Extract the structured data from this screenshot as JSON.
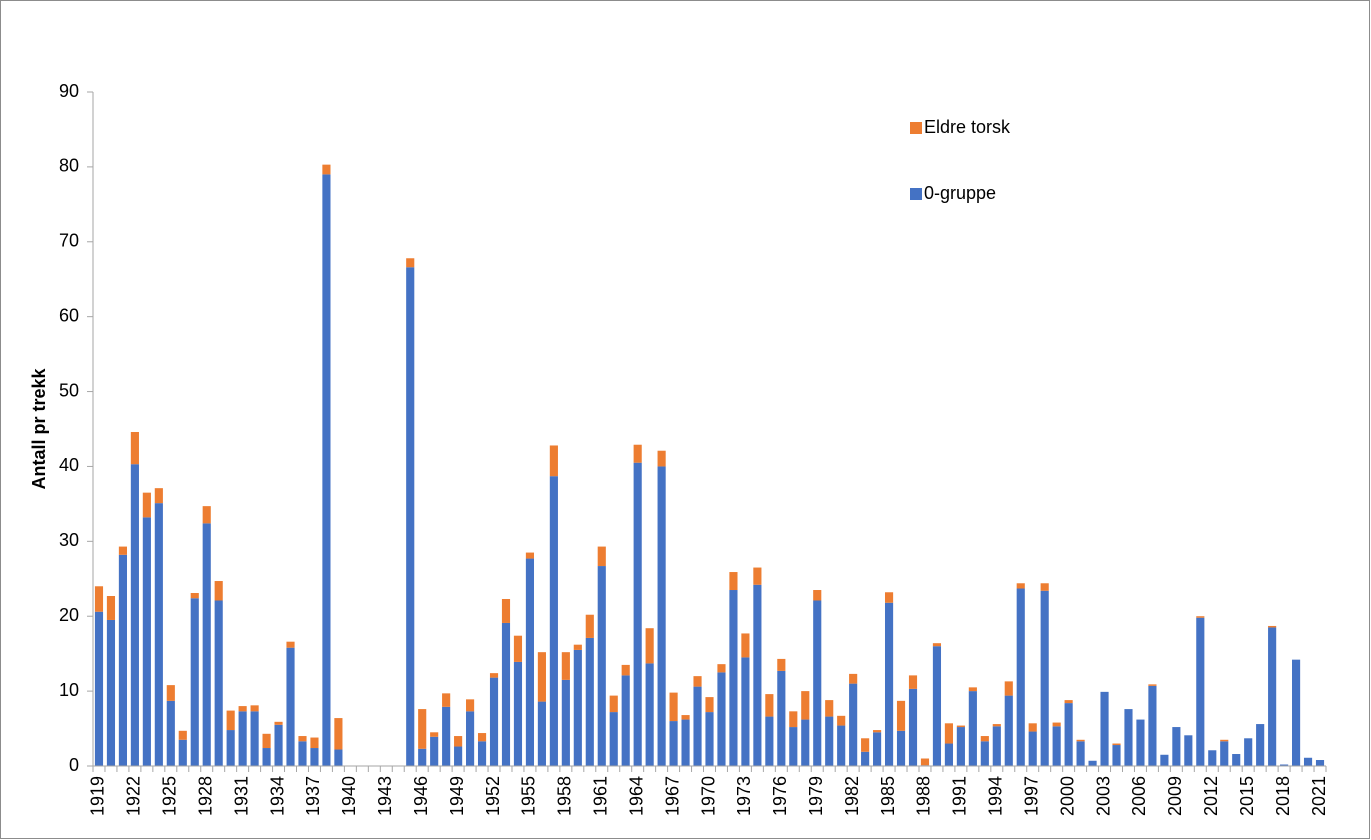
{
  "chart_data": {
    "type": "stacked_bar",
    "y_label": "Antall pr trekk",
    "categories": [
      "1919",
      null,
      null,
      "1922",
      null,
      null,
      "1925",
      null,
      null,
      "1928",
      null,
      null,
      "1931",
      null,
      null,
      "1934",
      null,
      null,
      "1937",
      null,
      null,
      "1940",
      null,
      null,
      "1943",
      null,
      null,
      "1946",
      null,
      null,
      "1949",
      null,
      null,
      "1952",
      null,
      null,
      "1955",
      null,
      null,
      "1958",
      null,
      null,
      "1961",
      null,
      null,
      "1964",
      null,
      null,
      "1967",
      null,
      null,
      "1970",
      null,
      null,
      "1973",
      null,
      null,
      "1976",
      null,
      null,
      "1979",
      null,
      null,
      "1982",
      null,
      null,
      "1985",
      null,
      null,
      "1988",
      null,
      null,
      "1991",
      null,
      null,
      "1994",
      null,
      null,
      "1997",
      null,
      null,
      "2000",
      null,
      null,
      "2003",
      null,
      null,
      "2006",
      null,
      null,
      "2009",
      null,
      null,
      "2012",
      null,
      null,
      "2015",
      null,
      null,
      "2018",
      null,
      null,
      "2021"
    ],
    "series": [
      {
        "name": "0-gruppe",
        "color": "#4472c4",
        "values": [
          20.6,
          19.5,
          28.2,
          40.3,
          33.2,
          35.1,
          8.7,
          3.5,
          22.4,
          32.4,
          22.1,
          4.8,
          7.3,
          7.3,
          2.4,
          5.5,
          15.8,
          3.3,
          2.4,
          79.0,
          2.2,
          0,
          0,
          0,
          0,
          0,
          66.6,
          2.3,
          3.9,
          7.9,
          2.6,
          7.3,
          3.3,
          11.8,
          19.1,
          13.9,
          27.7,
          8.6,
          38.7,
          11.5,
          15.5,
          17.1,
          26.7,
          7.2,
          12.1,
          40.5,
          13.7,
          40.0,
          6.0,
          6.2,
          10.6,
          7.2,
          12.5,
          23.5,
          14.5,
          24.2,
          6.6,
          12.7,
          5.2,
          6.2,
          22.1,
          6.6,
          5.4,
          11.0,
          1.9,
          4.5,
          21.8,
          4.7,
          10.3,
          0.1,
          16.0,
          3.0,
          5.2,
          10.0,
          3.3,
          5.3,
          9.4,
          23.7,
          4.6,
          23.4,
          5.3,
          8.4,
          3.3,
          0.7,
          9.9,
          2.8,
          7.6,
          6.2,
          10.7,
          1.5,
          5.2,
          4.1,
          19.8,
          2.1,
          3.3,
          1.6,
          3.7,
          5.6,
          18.5,
          0.2,
          14.2,
          1.1,
          0.8
        ]
      },
      {
        "name": "Eldre torsk",
        "color": "#ed7d31",
        "values": [
          3.4,
          3.2,
          1.1,
          4.3,
          3.3,
          2.0,
          2.1,
          1.2,
          0.7,
          2.3,
          2.6,
          2.6,
          0.7,
          0.8,
          1.9,
          0.4,
          0.8,
          0.7,
          1.4,
          1.3,
          4.2,
          0,
          0,
          0,
          0,
          0,
          1.2,
          5.3,
          0.6,
          1.8,
          1.4,
          1.6,
          1.1,
          0.6,
          3.2,
          3.5,
          0.8,
          6.6,
          4.1,
          3.7,
          0.7,
          3.1,
          2.6,
          2.2,
          1.4,
          2.4,
          4.7,
          2.1,
          3.8,
          0.6,
          1.4,
          2.0,
          1.1,
          2.4,
          3.2,
          2.3,
          3.0,
          1.6,
          2.1,
          3.8,
          1.4,
          2.2,
          1.3,
          1.3,
          1.8,
          0.3,
          1.4,
          4.0,
          1.8,
          0.9,
          0.4,
          2.7,
          0.2,
          0.5,
          0.7,
          0.3,
          1.9,
          0.7,
          1.1,
          1.0,
          0.5,
          0.4,
          0.2,
          0,
          0,
          0.2,
          0,
          0,
          0.2,
          0,
          0,
          0,
          0.2,
          0,
          0.2,
          0,
          0,
          0,
          0.2,
          0,
          0,
          0,
          0
        ]
      }
    ],
    "ylim": [
      0,
      90
    ],
    "yticks": [
      0,
      10,
      20,
      30,
      40,
      50,
      60,
      70,
      80,
      90
    ],
    "grid": false,
    "legend": "upper right"
  }
}
